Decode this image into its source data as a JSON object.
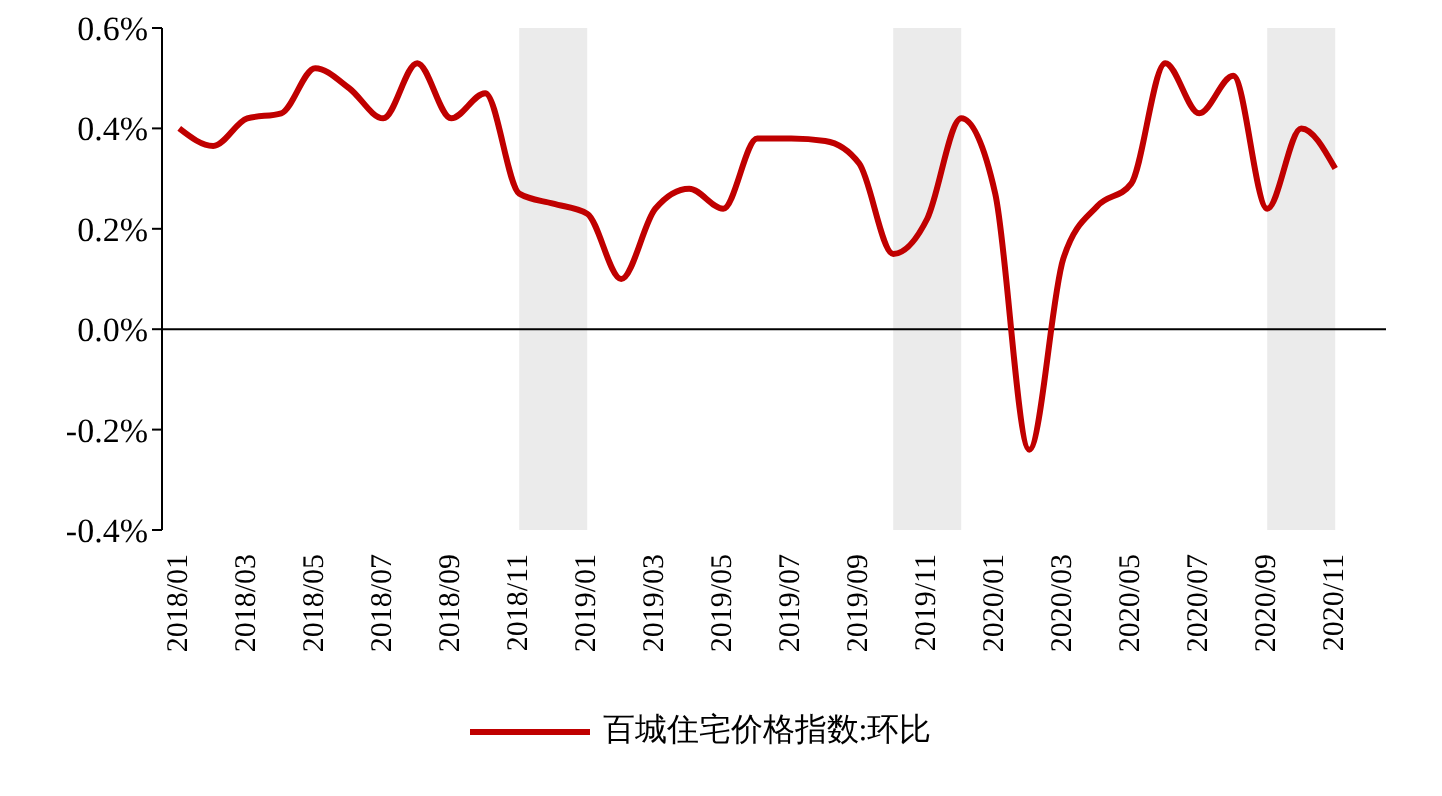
{
  "chart_data": {
    "type": "line",
    "x": [
      "2018-01",
      "2018-02",
      "2018-03",
      "2018-04",
      "2018-05",
      "2018-06",
      "2018-07",
      "2018-08",
      "2018-09",
      "2018-10",
      "2018-11",
      "2018-12",
      "2019-01",
      "2019-02",
      "2019-03",
      "2019-04",
      "2019-05",
      "2019-06",
      "2019-07",
      "2019-08",
      "2019-09",
      "2019-10",
      "2019-11",
      "2019-12",
      "2020-01",
      "2020-02",
      "2020-03",
      "2020-04",
      "2020-05",
      "2020-06",
      "2020-07",
      "2020-08",
      "2020-09",
      "2020-10",
      "2020-11"
    ],
    "series": [
      {
        "name": "百城住宅价格指数:环比",
        "color": "#c00000",
        "values": [
          0.4,
          0.365,
          0.42,
          0.43,
          0.52,
          0.48,
          0.42,
          0.53,
          0.42,
          0.47,
          0.27,
          0.25,
          0.23,
          0.1,
          0.24,
          0.28,
          0.24,
          0.38,
          0.38,
          0.375,
          0.33,
          0.15,
          0.22,
          0.42,
          0.27,
          -0.24,
          0.14,
          0.245,
          0.29,
          0.53,
          0.43,
          0.505,
          0.24,
          0.4,
          0.32
        ]
      }
    ],
    "xlim": [
      "2017-12-16",
      "2020-12-16"
    ],
    "xticks": [
      {
        "value": "2018-01",
        "label": "2018/01"
      },
      {
        "value": "2018-03",
        "label": "2018/03"
      },
      {
        "value": "2018-05",
        "label": "2018/05"
      },
      {
        "value": "2018-07",
        "label": "2018/07"
      },
      {
        "value": "2018-09",
        "label": "2018/09"
      },
      {
        "value": "2018-11",
        "label": "2018/11"
      },
      {
        "value": "2019-01",
        "label": "2019/01"
      },
      {
        "value": "2019-03",
        "label": "2019/03"
      },
      {
        "value": "2019-05",
        "label": "2019/05"
      },
      {
        "value": "2019-07",
        "label": "2019/07"
      },
      {
        "value": "2019-09",
        "label": "2019/09"
      },
      {
        "value": "2019-11",
        "label": "2019/11"
      },
      {
        "value": "2020-01",
        "label": "2020/01"
      },
      {
        "value": "2020-03",
        "label": "2020/03"
      },
      {
        "value": "2020-05",
        "label": "2020/05"
      },
      {
        "value": "2020-07",
        "label": "2020/07"
      },
      {
        "value": "2020-09",
        "label": "2020/09"
      },
      {
        "value": "2020-11",
        "label": "2020/11"
      }
    ],
    "ylim": [
      -0.4,
      0.6
    ],
    "yticks": [
      {
        "value": -0.4,
        "label": "-0.4%"
      },
      {
        "value": -0.2,
        "label": "-0.2%"
      },
      {
        "value": 0,
        "label": "0.0%"
      },
      {
        "value": 0.2,
        "label": "0.2%"
      },
      {
        "value": 0.4,
        "label": "0.4%"
      },
      {
        "value": 0.6,
        "label": "0.6%"
      }
    ],
    "bands": [
      {
        "axis": "x",
        "from": "2018-11",
        "to": "2019-01",
        "color": "#ebebeb"
      },
      {
        "axis": "x",
        "from": "2019-10",
        "to": "2019-12",
        "color": "#ebebeb"
      },
      {
        "axis": "x",
        "from": "2020-09",
        "to": "2020-11",
        "color": "#ebebeb"
      }
    ],
    "marker": "none",
    "legend": "bottom"
  }
}
